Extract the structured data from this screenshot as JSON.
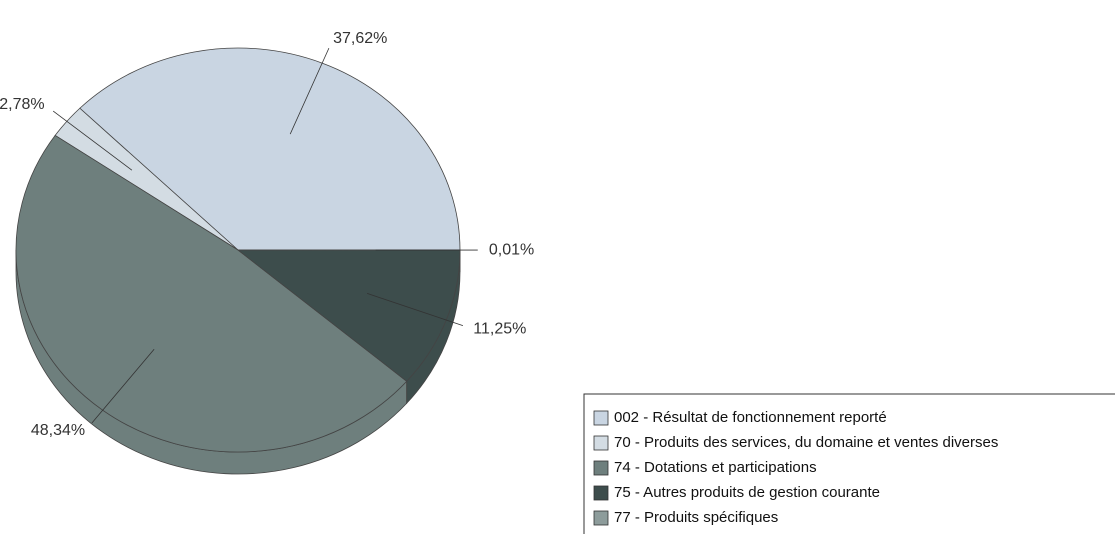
{
  "chart_data": {
    "type": "pie",
    "categories": [
      "002 - Résultat de fonctionnement reporté",
      "70 - Produits des services, du domaine et ventes diverses",
      "74 - Dotations et participations",
      "75 - Autres produits de gestion courante",
      "77 - Produits spécifiques"
    ],
    "values": [
      37.62,
      2.78,
      48.34,
      11.25,
      0.01
    ],
    "value_labels": [
      "37,62%",
      "2,78%",
      "48,34%",
      "11,25%",
      "0,01%"
    ],
    "colors": [
      "#c9d5e2",
      "#d3dce3",
      "#6e7f7d",
      "#3d4d4c",
      "#8d9c9b"
    ]
  }
}
